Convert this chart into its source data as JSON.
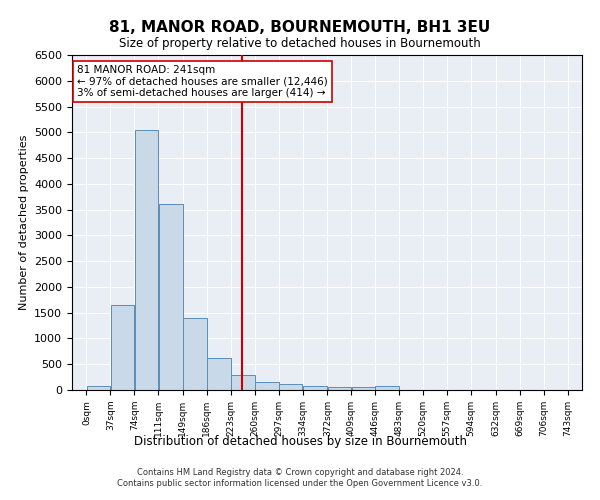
{
  "title": "81, MANOR ROAD, BOURNEMOUTH, BH1 3EU",
  "subtitle": "Size of property relative to detached houses in Bournemouth",
  "xlabel": "Distribution of detached houses by size in Bournemouth",
  "ylabel": "Number of detached properties",
  "footer_line1": "Contains HM Land Registry data © Crown copyright and database right 2024.",
  "footer_line2": "Contains public sector information licensed under the Open Government Licence v3.0.",
  "bar_values": [
    75,
    1650,
    5050,
    3600,
    1400,
    625,
    300,
    150,
    110,
    75,
    60,
    60,
    75,
    0,
    0,
    0,
    0,
    0,
    0,
    0
  ],
  "bin_edges": [
    0,
    37,
    74,
    111,
    149,
    186,
    223,
    260,
    297,
    334,
    372,
    409,
    446,
    483,
    520,
    557,
    594,
    632,
    669,
    706,
    743
  ],
  "bar_color": "#c9d9e8",
  "bar_edge_color": "#5b8db8",
  "vline_x": 241,
  "vline_color": "#cc0000",
  "ylim": [
    0,
    6500
  ],
  "annotation_text_line1": "81 MANOR ROAD: 241sqm",
  "annotation_text_line2": "← 97% of detached houses are smaller (12,446)",
  "annotation_text_line3": "3% of semi-detached houses are larger (414) →",
  "plot_background": "#e8eef4",
  "tick_labels": [
    "0sqm",
    "37sqm",
    "74sqm",
    "111sqm",
    "149sqm",
    "186sqm",
    "223sqm",
    "260sqm",
    "297sqm",
    "334sqm",
    "372sqm",
    "409sqm",
    "446sqm",
    "483sqm",
    "520sqm",
    "557sqm",
    "594sqm",
    "632sqm",
    "669sqm",
    "706sqm",
    "743sqm"
  ],
  "yticks": [
    0,
    500,
    1000,
    1500,
    2000,
    2500,
    3000,
    3500,
    4000,
    4500,
    5000,
    5500,
    6000,
    6500
  ]
}
